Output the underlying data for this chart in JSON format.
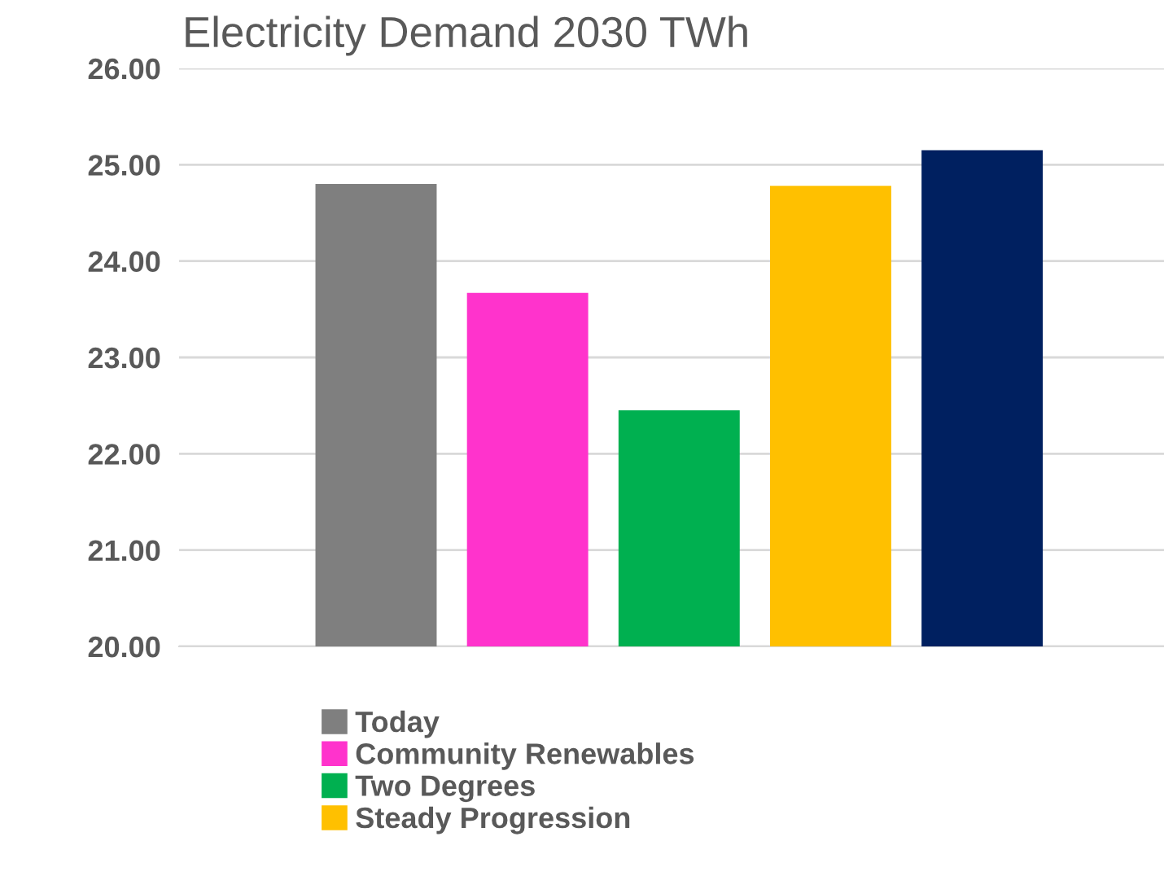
{
  "chart_data": {
    "type": "bar",
    "title": "Electricity Demand 2030 TWh",
    "categories": [
      null
    ],
    "series": [
      {
        "name": "Today",
        "color": "#7f7f7f",
        "values": [
          24.8
        ]
      },
      {
        "name": "Community Renewables",
        "color": "#ff33cc",
        "values": [
          23.67
        ]
      },
      {
        "name": "Two Degrees",
        "color": "#00b050",
        "values": [
          22.45
        ]
      },
      {
        "name": "Steady Progression",
        "color": "#ffc000",
        "values": [
          24.78
        ]
      },
      {
        "color": "#002060",
        "values": [
          25.15
        ]
      }
    ],
    "ylim": [
      20,
      26
    ],
    "yticks": [
      {
        "value": 20,
        "label": "20.00"
      },
      {
        "value": 21,
        "label": "21.00"
      },
      {
        "value": 22,
        "label": "22.00"
      },
      {
        "value": 23,
        "label": "23.00"
      },
      {
        "value": 24,
        "label": "24.00"
      },
      {
        "value": 25,
        "label": "25.00"
      },
      {
        "value": 26,
        "label": "26.00"
      }
    ],
    "grid": "y",
    "legend": "bottom"
  }
}
